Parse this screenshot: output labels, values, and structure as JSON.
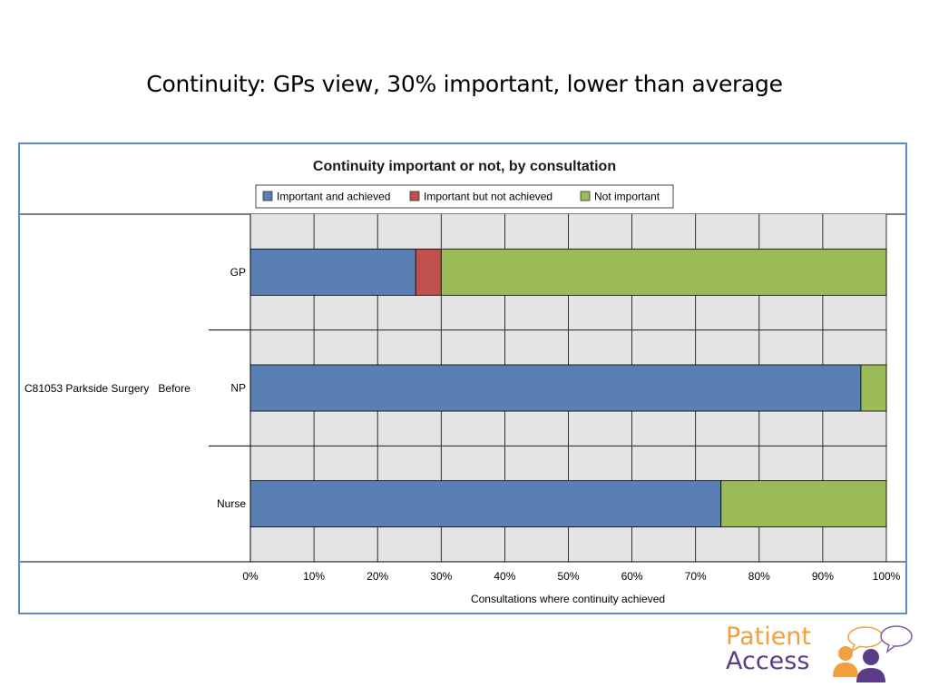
{
  "slide": {
    "title": "Continuity:  GPs view, 30% important, lower than average"
  },
  "chart_data": {
    "type": "bar",
    "orientation": "horizontal",
    "stacked": true,
    "title": "Continuity important or not, by consultation",
    "xlabel": "Consultations where continuity achieved",
    "ylabel": "",
    "group_label": "C81053 Parkside Surgery   Before",
    "categories": [
      "GP",
      "NP",
      "Nurse"
    ],
    "series": [
      {
        "name": "Important and achieved",
        "color": "#5a7fb5",
        "values": [
          26,
          96,
          74
        ]
      },
      {
        "name": "Important but not achieved",
        "color": "#c0504d",
        "values": [
          4,
          0,
          0
        ]
      },
      {
        "name": "Not important",
        "color": "#9bbb59",
        "values": [
          70,
          4,
          26
        ]
      }
    ],
    "xlim": [
      0,
      100
    ],
    "xticks": [
      "0%",
      "10%",
      "20%",
      "30%",
      "40%",
      "50%",
      "60%",
      "70%",
      "80%",
      "90%",
      "100%"
    ],
    "grid": true,
    "legend_position": "top"
  },
  "logo": {
    "line1": "Patient",
    "line2": "Access"
  }
}
